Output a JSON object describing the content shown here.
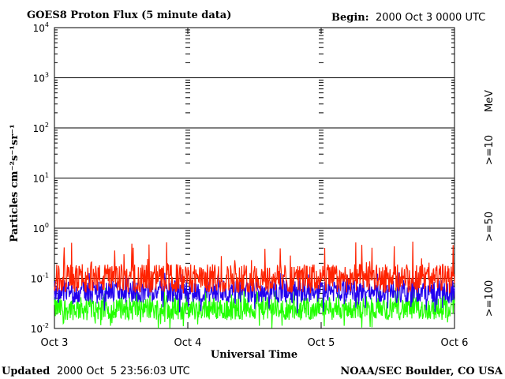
{
  "chart_data": {
    "type": "line",
    "title": "GOES8 Proton Flux (5 minute data)",
    "begin_label": "Begin:",
    "begin_value": "2000 Oct 3 0000 UTC",
    "xlabel": "Universal Time",
    "ylabel": "Particles cm⁻²s⁻¹sr⁻¹",
    "x_ticks": [
      "Oct 3",
      "Oct 4",
      "Oct 5",
      "Oct 6"
    ],
    "xlim": [
      "2000-10-03 00:00",
      "2000-10-06 00:00"
    ],
    "y_scale": "log",
    "ylim": [
      0.01,
      10000
    ],
    "y_ticks": [
      {
        "base": "10",
        "exp": "4"
      },
      {
        "base": "10",
        "exp": "3"
      },
      {
        "base": "10",
        "exp": "2"
      },
      {
        "base": "10",
        "exp": "1"
      },
      {
        "base": "10",
        "exp": "0"
      },
      {
        "base": "10",
        "exp": "-1"
      },
      {
        "base": "10",
        "exp": "-2"
      }
    ],
    "y_tick_values": [
      10000,
      1000,
      100,
      10,
      1,
      0.1,
      0.01
    ],
    "grid": true,
    "legend_placement": "right",
    "energy_unit": "MeV",
    "series": [
      {
        "name": ">=10",
        "color": "#ff2200",
        "baseline": 0.1,
        "range": [
          0.05,
          0.55
        ]
      },
      {
        "name": ">=50",
        "color": "#2200ee",
        "baseline": 0.055,
        "range": [
          0.02,
          0.13
        ]
      },
      {
        "name": ">=100",
        "color": "#22ff00",
        "baseline": 0.025,
        "range": [
          0.01,
          0.07
        ]
      }
    ]
  },
  "footer": {
    "updated_label": "Updated",
    "updated_value": "2000 Oct  5 23:56:03 UTC",
    "credit": "NOAA/SEC Boulder, CO USA"
  }
}
